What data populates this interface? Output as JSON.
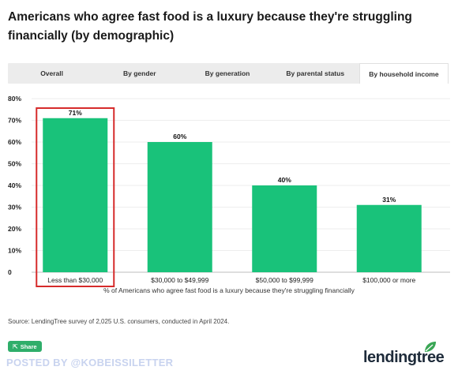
{
  "title": "Americans who agree fast food is a luxury because they're struggling financially (by demographic)",
  "tabs": [
    {
      "label": "Overall",
      "active": false
    },
    {
      "label": "By gender",
      "active": false
    },
    {
      "label": "By generation",
      "active": false
    },
    {
      "label": "By parental status",
      "active": false
    },
    {
      "label": "By household income",
      "active": true
    }
  ],
  "chart_data": {
    "type": "bar",
    "categories": [
      "Less than $30,000",
      "$30,000 to $49,999",
      "$50,000 to $99,999",
      "$100,000 or more"
    ],
    "values": [
      71,
      60,
      40,
      31
    ],
    "value_labels": [
      "71%",
      "60%",
      "40%",
      "31%"
    ],
    "y_ticks": [
      "0",
      "10%",
      "20%",
      "30%",
      "40%",
      "50%",
      "60%",
      "70%",
      "80%"
    ],
    "ylim": [
      0,
      80
    ],
    "xlabel": "% of Americans who agree fast food is a luxury because they're struggling financially",
    "highlighted_category": "Less than $30,000",
    "bar_color": "#19c27a",
    "highlight_color": "#d62b2b",
    "grid": true
  },
  "source": "Source: LendingTree survey of 2,025 U.S. consumers, conducted in April 2024.",
  "share": {
    "label": "Share",
    "icon": "share-icon"
  },
  "watermark": "POSTED BY @KOBEISSILETTER",
  "logo": {
    "text": "lendingtree",
    "icon": "leaf-icon",
    "color": "#3aa655"
  }
}
